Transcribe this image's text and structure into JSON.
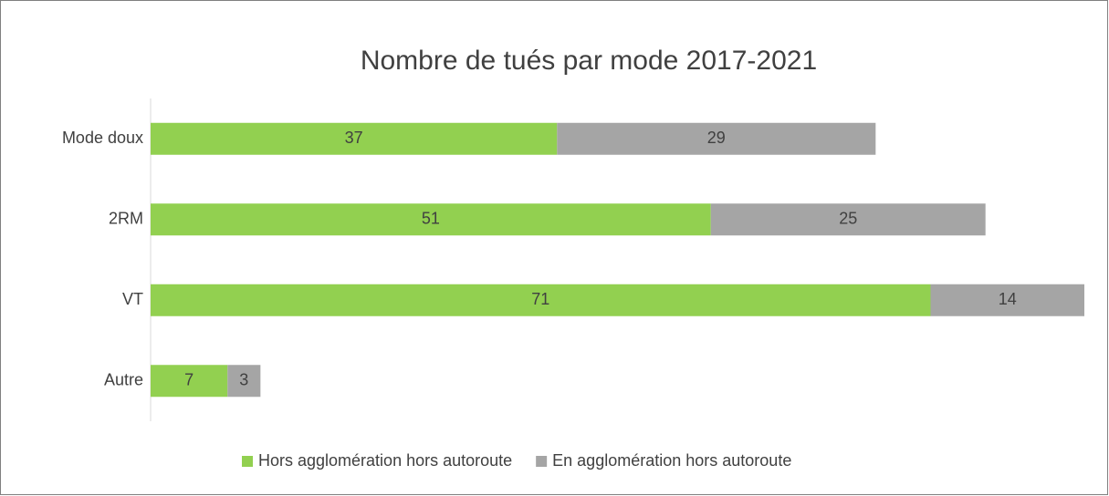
{
  "chart_data": {
    "type": "stacked_barh",
    "title": "Nombre de tués par mode 2017-2021",
    "categories": [
      "Mode doux",
      "2RM",
      "VT",
      "Autre"
    ],
    "series": [
      {
        "name": "Hors agglomération hors autoroute",
        "color": "#92d050",
        "values": [
          37,
          51,
          71,
          7
        ]
      },
      {
        "name": "En agglomération hors autoroute",
        "color": "#a5a5a5",
        "values": [
          29,
          25,
          14,
          3
        ]
      }
    ],
    "legend": "bottom"
  }
}
